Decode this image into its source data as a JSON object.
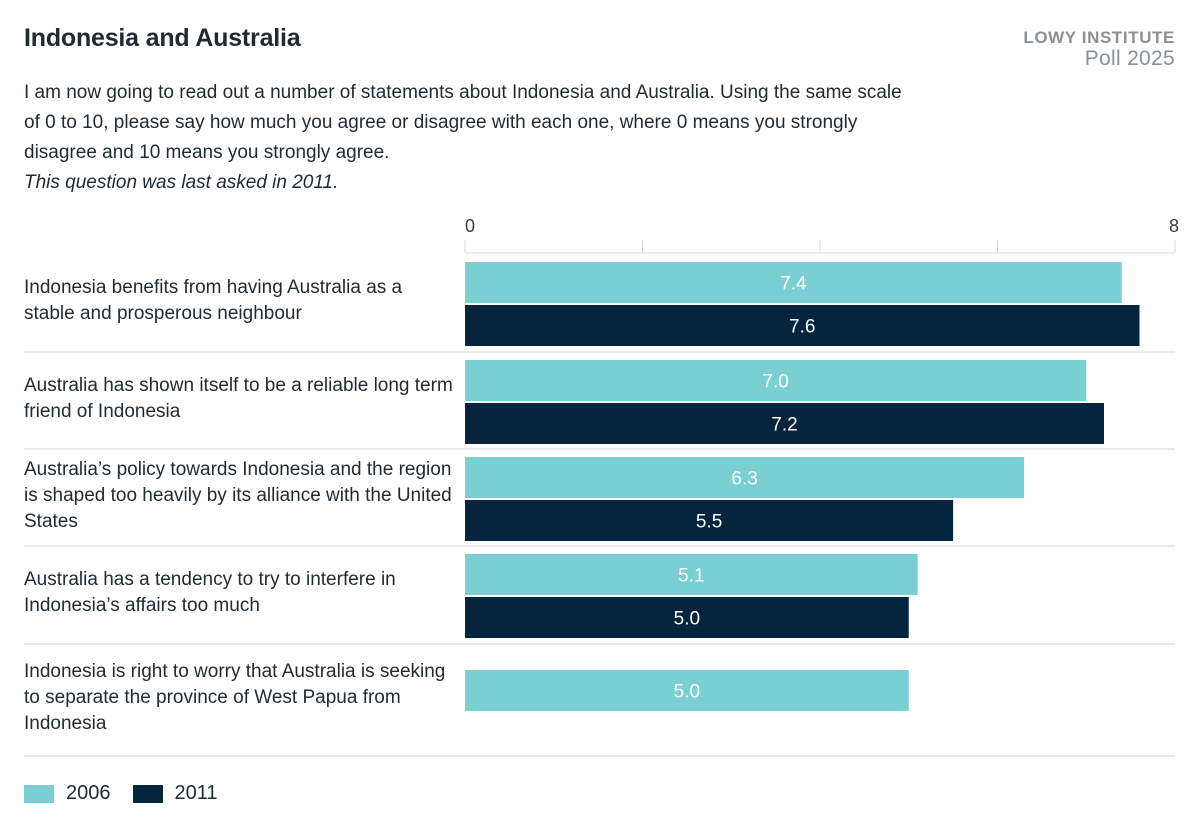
{
  "header": {
    "title": "Indonesia and Australia",
    "org": "LOWY INSTITUTE",
    "poll": "Poll 2025",
    "subtitle": "I am now going to read out a number of statements about Indonesia and Australia. Using the same scale of 0 to 10, please say how much you agree or disagree with each one, where 0 means you strongly disagree and 10 means you strongly agree.",
    "note": "This question was last asked in 2011."
  },
  "colors": {
    "series_2006": "#7acfd2",
    "series_2011": "#04253d",
    "gridline": "#d4d8db",
    "separator": "#d9dcdf",
    "axis_text": "#33404a"
  },
  "chart_data": {
    "type": "bar",
    "orientation": "horizontal",
    "xlim": [
      0,
      8
    ],
    "x_tick_labels": [
      "0",
      "8"
    ],
    "grid": true,
    "legend_position": "bottom-left",
    "categories": [
      "Indonesia benefits from having Australia as a stable and prosperous neighbour",
      "Australia has shown itself to be a reliable long term friend of Indonesia",
      "Australia’s policy towards Indonesia and the region is shaped too heavily by its alliance with the United States",
      "Australia has a tendency to try to interfere in Indonesia’s affairs too much",
      "Indonesia is right to worry that Australia is seeking to separate the province of West Papua from Indonesia"
    ],
    "series": [
      {
        "name": "2006",
        "values": [
          7.4,
          7.0,
          6.3,
          5.1,
          5.0
        ]
      },
      {
        "name": "2011",
        "values": [
          7.6,
          7.2,
          5.5,
          5.0,
          null
        ]
      }
    ]
  }
}
